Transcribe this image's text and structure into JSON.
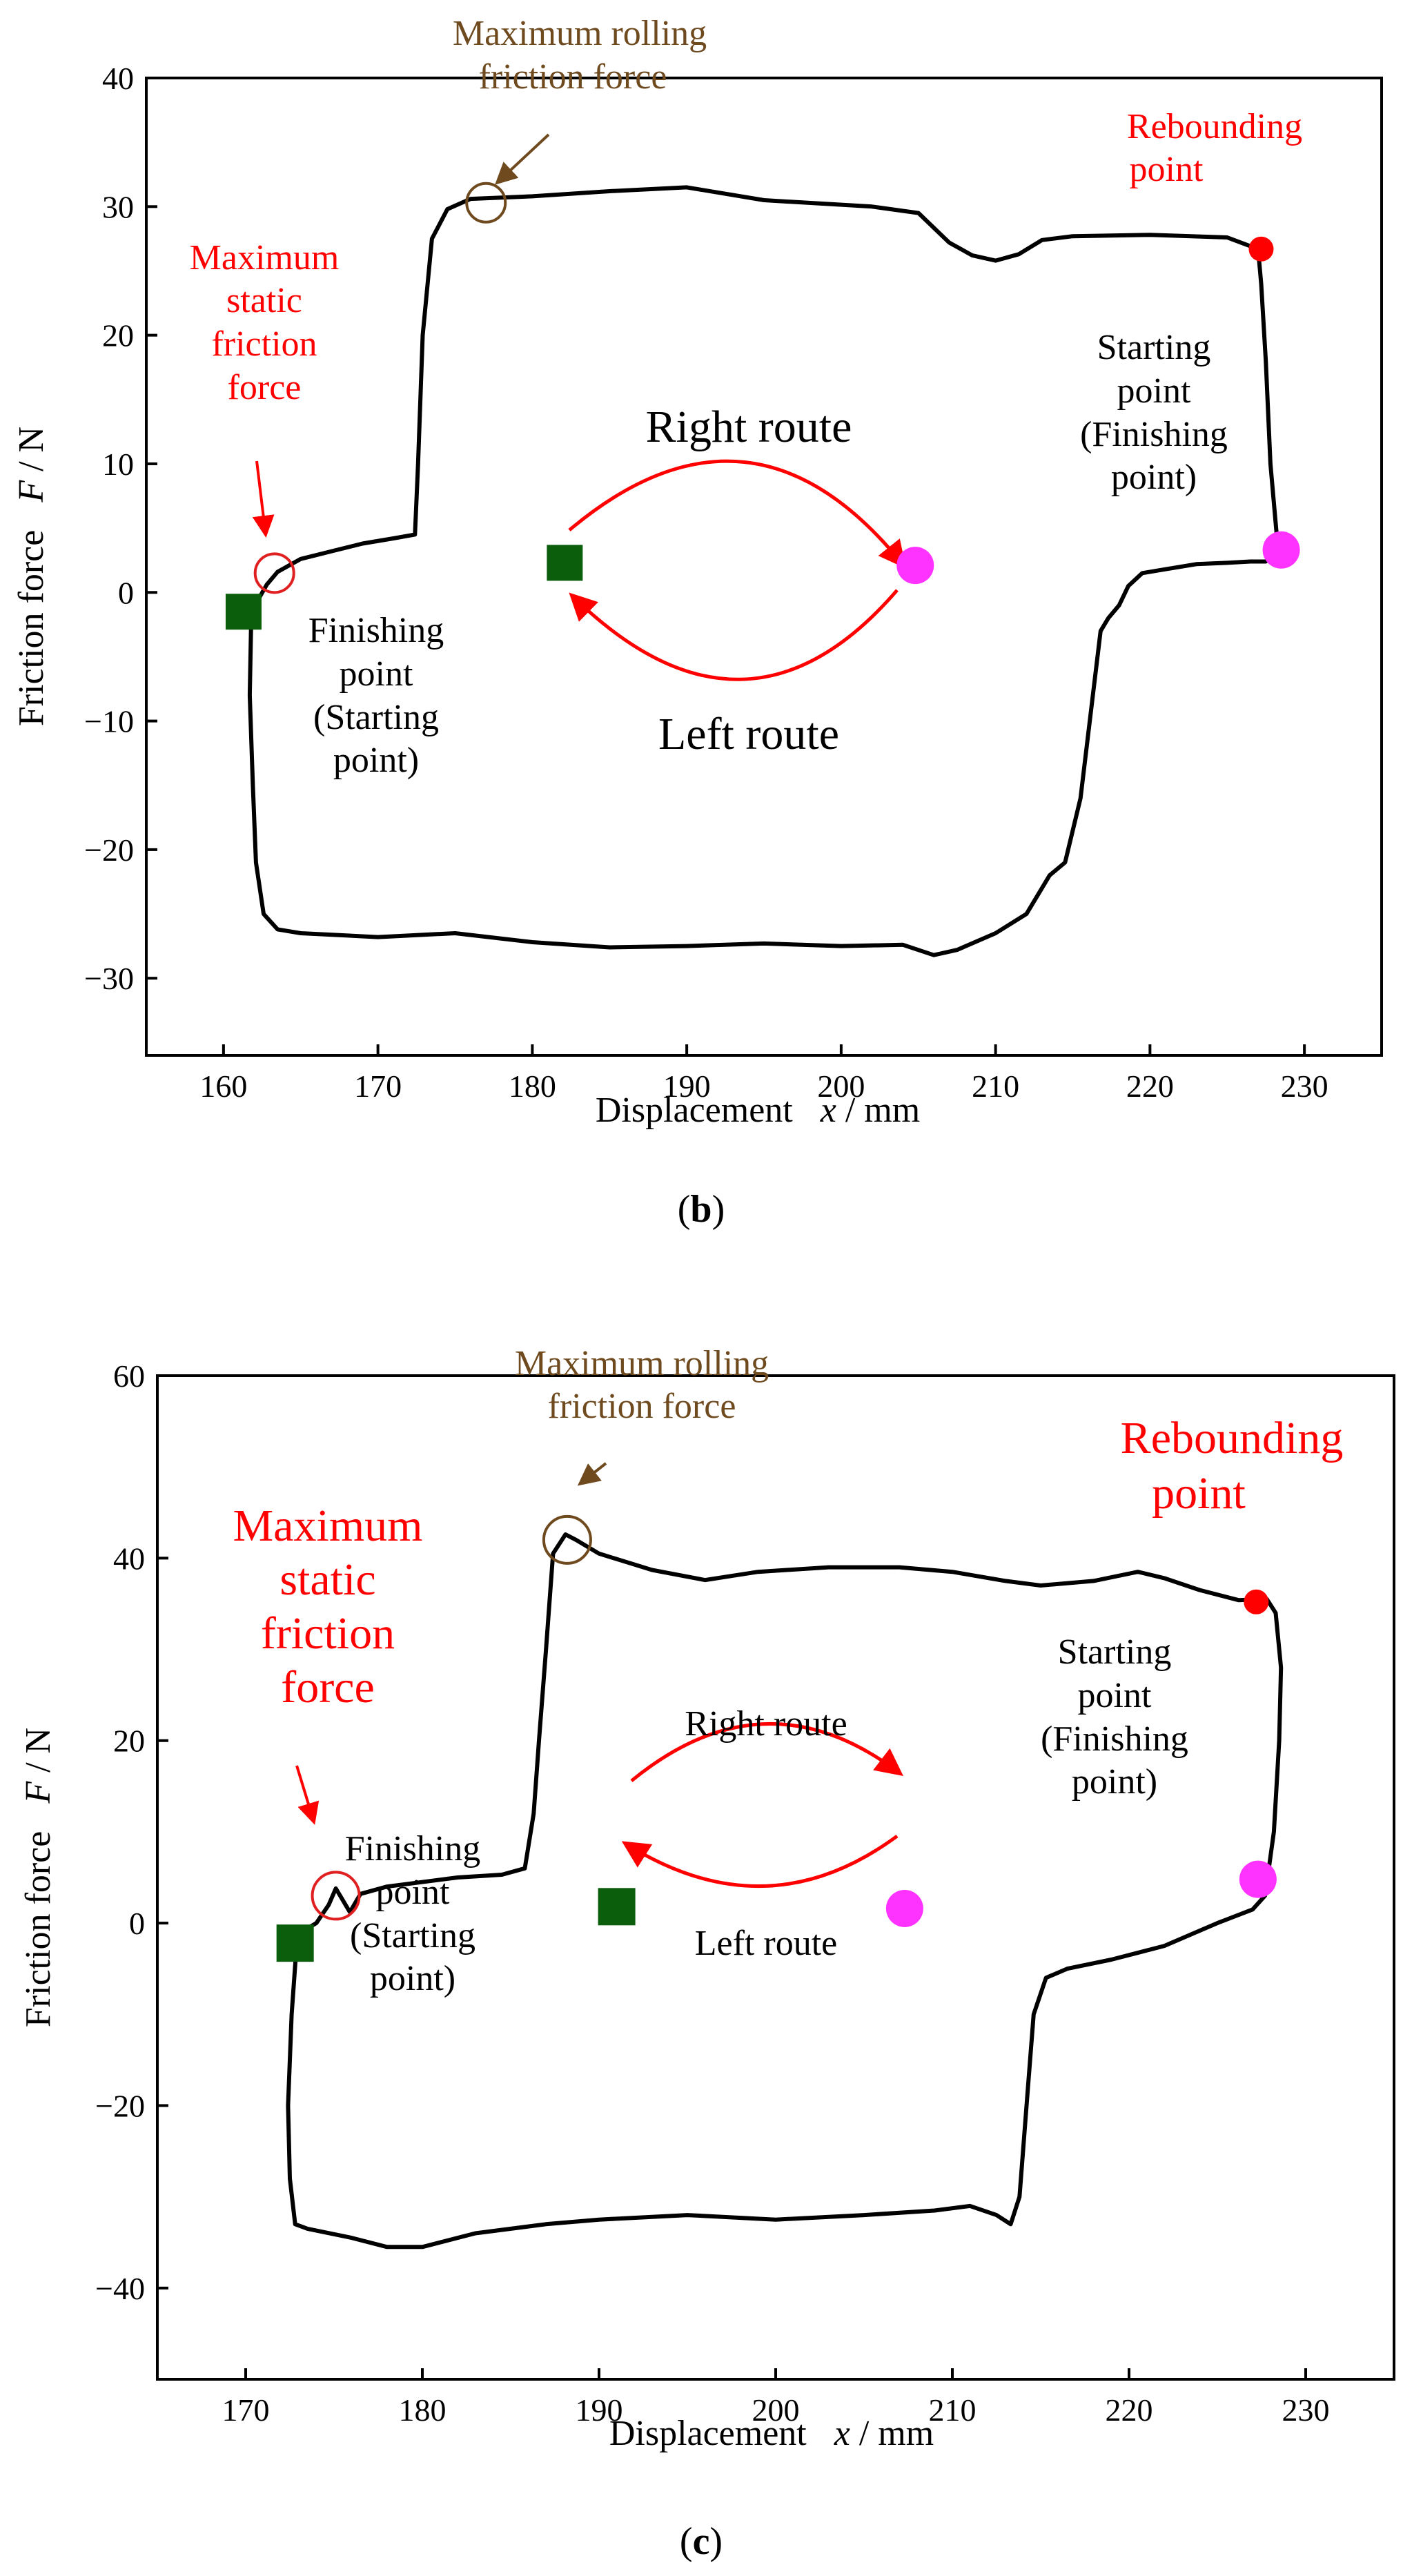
{
  "colors": {
    "curve": "#000000",
    "brown": "#6e4a1e",
    "red": "#ff0000",
    "magenta": "#ff33ff",
    "green": "#0b5e0b"
  },
  "chart_data": [
    {
      "type": "line",
      "caption": "(b)",
      "caption_open": "(",
      "caption_letter": "b",
      "caption_close": ")",
      "xlabel": "Displacement",
      "xlabel_var": "x",
      "xlabel_unit": " / mm",
      "ylabel": "Friction force",
      "ylabel_var": "F",
      "ylabel_unit": " / N",
      "xlim": [
        155,
        235
      ],
      "ylim": [
        -36,
        40
      ],
      "xticks": [
        160,
        170,
        180,
        190,
        200,
        210,
        220,
        230
      ],
      "yticks": [
        -30,
        -20,
        -10,
        0,
        10,
        20,
        30,
        40
      ],
      "curve": [
        [
          161.8,
          -1.5
        ],
        [
          161.7,
          -8
        ],
        [
          161.9,
          -15
        ],
        [
          162.1,
          -21
        ],
        [
          162.6,
          -25
        ],
        [
          163.5,
          -26.2
        ],
        [
          165,
          -26.5
        ],
        [
          170,
          -26.8
        ],
        [
          175,
          -26.5
        ],
        [
          180,
          -27.2
        ],
        [
          185,
          -27.6
        ],
        [
          190,
          -27.5
        ],
        [
          195,
          -27.3
        ],
        [
          200,
          -27.5
        ],
        [
          204,
          -27.4
        ],
        [
          206,
          -28.2
        ],
        [
          207.5,
          -27.8
        ],
        [
          210,
          -26.5
        ],
        [
          212,
          -25
        ],
        [
          213.5,
          -22
        ],
        [
          214.5,
          -21
        ],
        [
          215.5,
          -16
        ],
        [
          216.3,
          -8
        ],
        [
          216.8,
          -3
        ],
        [
          217.3,
          -2
        ],
        [
          218,
          -1
        ],
        [
          218.6,
          0.5
        ],
        [
          219.5,
          1.5
        ],
        [
          221,
          1.8
        ],
        [
          223,
          2.2
        ],
        [
          225,
          2.3
        ],
        [
          226.5,
          2.4
        ],
        [
          227.5,
          2.4
        ],
        [
          228.3,
          3.2
        ],
        [
          227.8,
          10
        ],
        [
          227.5,
          18
        ],
        [
          227.2,
          24
        ],
        [
          227.0,
          26.7
        ],
        [
          225,
          27.6
        ],
        [
          220,
          27.8
        ],
        [
          215,
          27.7
        ],
        [
          213,
          27.4
        ],
        [
          211.5,
          26.3
        ],
        [
          210,
          25.8
        ],
        [
          208.5,
          26.2
        ],
        [
          207,
          27.2
        ],
        [
          205,
          29.5
        ],
        [
          202,
          30
        ],
        [
          195,
          30.5
        ],
        [
          190,
          31.5
        ],
        [
          185,
          31.2
        ],
        [
          180,
          30.8
        ],
        [
          176,
          30.6
        ],
        [
          174.5,
          29.8
        ],
        [
          173.5,
          27.5
        ],
        [
          172.9,
          20
        ],
        [
          172.6,
          10
        ],
        [
          172.4,
          4.5
        ],
        [
          171,
          4.2
        ],
        [
          169,
          3.8
        ],
        [
          167,
          3.2
        ],
        [
          165,
          2.6
        ],
        [
          163.5,
          1.6
        ],
        [
          162.8,
          0.6
        ],
        [
          161.8,
          -1.5
        ]
      ],
      "markers": {
        "finishing": {
          "x": 161.3,
          "y": -1.5
        },
        "starting": {
          "x": 228.5,
          "y": 3.3
        },
        "rebounding": {
          "x": 227.2,
          "y": 26.7
        },
        "static_max": {
          "x": 163.3,
          "y": 1.5
        },
        "rolling_max": {
          "x": 177.0,
          "y": 30.3
        },
        "legend_square": {
          "x": 182.1,
          "y": 2.3
        },
        "legend_circle": {
          "x": 204.8,
          "y": 2.1
        }
      },
      "annotations": {
        "rolling_line1": "Maximum rolling",
        "rolling_line2": "friction force",
        "static_line1": "Maximum",
        "static_line2": "static",
        "static_line3": "friction",
        "static_line4": "force",
        "rebound_line1": "Rebounding",
        "rebound_line2": "point",
        "start_line1": "Starting",
        "start_line2": "point",
        "start_line3": "(Finishing",
        "start_line4": "point)",
        "finish_line1": "Finishing",
        "finish_line2": "point",
        "finish_line3": "(Starting",
        "finish_line4": "point)",
        "right_route": "Right route",
        "left_route": "Left route"
      }
    },
    {
      "type": "line",
      "caption": "(c)",
      "caption_open": "(",
      "caption_letter": "c",
      "caption_close": ")",
      "xlabel": "Displacement",
      "xlabel_var": "x",
      "xlabel_unit": " / mm",
      "ylabel": "Friction force",
      "ylabel_var": "F",
      "ylabel_unit": " / N",
      "xlim": [
        165,
        235
      ],
      "ylim": [
        -50,
        60
      ],
      "xticks": [
        170,
        180,
        190,
        200,
        210,
        220,
        230
      ],
      "yticks": [
        -40,
        -20,
        0,
        20,
        40,
        60
      ],
      "curve": [
        [
          172.9,
          -2
        ],
        [
          172.6,
          -10
        ],
        [
          172.4,
          -20
        ],
        [
          172.5,
          -28
        ],
        [
          172.8,
          -33
        ],
        [
          173.5,
          -33.5
        ],
        [
          176,
          -34.5
        ],
        [
          178,
          -35.5
        ],
        [
          180,
          -35.5
        ],
        [
          183,
          -34
        ],
        [
          187,
          -33
        ],
        [
          190,
          -32.5
        ],
        [
          195,
          -32
        ],
        [
          200,
          -32.5
        ],
        [
          205,
          -32
        ],
        [
          209,
          -31.5
        ],
        [
          211,
          -31
        ],
        [
          212.5,
          -32
        ],
        [
          213.3,
          -33
        ],
        [
          213.8,
          -30
        ],
        [
          214.2,
          -20
        ],
        [
          214.6,
          -10
        ],
        [
          215.3,
          -6
        ],
        [
          216.5,
          -5
        ],
        [
          219,
          -4
        ],
        [
          222,
          -2.5
        ],
        [
          225,
          0
        ],
        [
          227,
          1.5
        ],
        [
          227.7,
          3
        ],
        [
          228.2,
          10
        ],
        [
          228.5,
          20
        ],
        [
          228.6,
          28
        ],
        [
          228.3,
          34
        ],
        [
          227.8,
          35.5
        ],
        [
          226.2,
          35.4
        ],
        [
          224,
          36.5
        ],
        [
          222,
          37.8
        ],
        [
          220.5,
          38.5
        ],
        [
          218,
          37.5
        ],
        [
          215,
          37
        ],
        [
          213,
          37.5
        ],
        [
          210,
          38.5
        ],
        [
          207,
          39
        ],
        [
          203,
          39
        ],
        [
          199,
          38.5
        ],
        [
          196,
          37.6
        ],
        [
          193,
          38.7
        ],
        [
          190,
          40.5
        ],
        [
          188.7,
          42
        ],
        [
          188.1,
          42.6
        ],
        [
          187.4,
          40.5
        ],
        [
          187,
          30
        ],
        [
          186.6,
          20
        ],
        [
          186.3,
          12
        ],
        [
          185.8,
          6
        ],
        [
          184.5,
          5.3
        ],
        [
          182,
          5
        ],
        [
          178,
          4
        ],
        [
          176.5,
          3.2
        ],
        [
          175.9,
          1.2
        ],
        [
          175.5,
          2.5
        ],
        [
          175.1,
          3.8
        ],
        [
          174.7,
          2
        ],
        [
          174,
          0
        ],
        [
          173.3,
          -0.8
        ],
        [
          172.9,
          -2
        ]
      ],
      "markers": {
        "finishing": {
          "x": 172.8,
          "y": -2.2
        },
        "starting": {
          "x": 227.3,
          "y": 4.8
        },
        "rebounding": {
          "x": 227.2,
          "y": 35.2
        },
        "static_max": {
          "x": 175.1,
          "y": 3.0
        },
        "rolling_max": {
          "x": 188.2,
          "y": 42.0
        },
        "legend_square": {
          "x": 191.0,
          "y": 1.8
        },
        "legend_circle": {
          "x": 207.3,
          "y": 1.6
        }
      },
      "annotations": {
        "rolling_line1": "Maximum rolling",
        "rolling_line2": "friction force",
        "static_line1": "Maximum",
        "static_line2": "static",
        "static_line3": "friction",
        "static_line4": "force",
        "rebound_line1": "Rebounding",
        "rebound_line2": "point",
        "start_line1": "Starting",
        "start_line2": "point",
        "start_line3": "(Finishing",
        "start_line4": "point)",
        "finish_line1": "Finishing",
        "finish_line2": "point",
        "finish_line3": "(Starting",
        "finish_line4": "point)",
        "right_route": "Right route",
        "left_route": "Left route"
      }
    }
  ]
}
